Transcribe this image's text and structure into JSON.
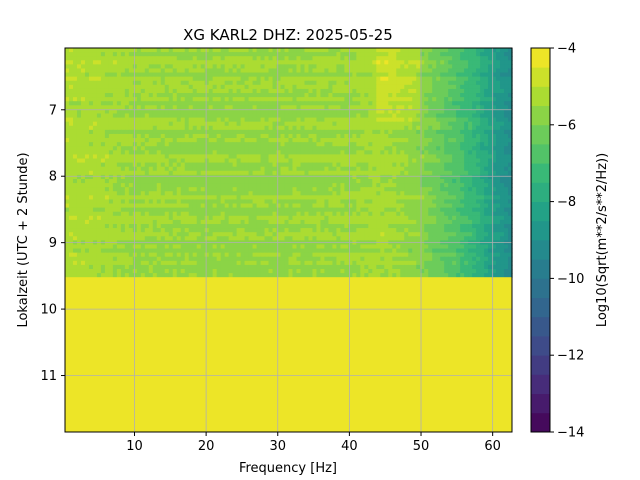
{
  "chart_data": {
    "type": "heatmap",
    "title": "XG KARL2  DHZ: 2025-05-25",
    "xlabel": "Frequency [Hz]",
    "ylabel": "Lokalzeit (UTC + 2 Stunde)",
    "xlim": [
      0.3,
      62.7
    ],
    "ylim": [
      6.07,
      11.85
    ],
    "y_inverted": true,
    "x_ticks": [
      10,
      20,
      30,
      40,
      50,
      60
    ],
    "y_ticks": [
      7,
      8,
      9,
      10,
      11
    ],
    "grid": true,
    "colormap": "viridis",
    "colorbar": {
      "label": "Log10(Sqrt(m**2/s**2/Hz))",
      "range": [
        -14,
        -4
      ],
      "ticks": [
        -4,
        -6,
        -8,
        -10,
        -12,
        -14
      ],
      "levels": 20
    },
    "data_end_time": 9.52,
    "fill_value_after_data_end": -4,
    "frequency_profile": {
      "frequency": [
        0.3,
        5,
        10,
        20,
        30,
        40,
        45,
        50,
        55,
        58,
        60,
        62.7
      ],
      "value": [
        -5.2,
        -5.3,
        -5.5,
        -5.6,
        -5.6,
        -5.5,
        -5.3,
        -5.8,
        -6.8,
        -7.6,
        -8.4,
        -9.2
      ]
    }
  }
}
